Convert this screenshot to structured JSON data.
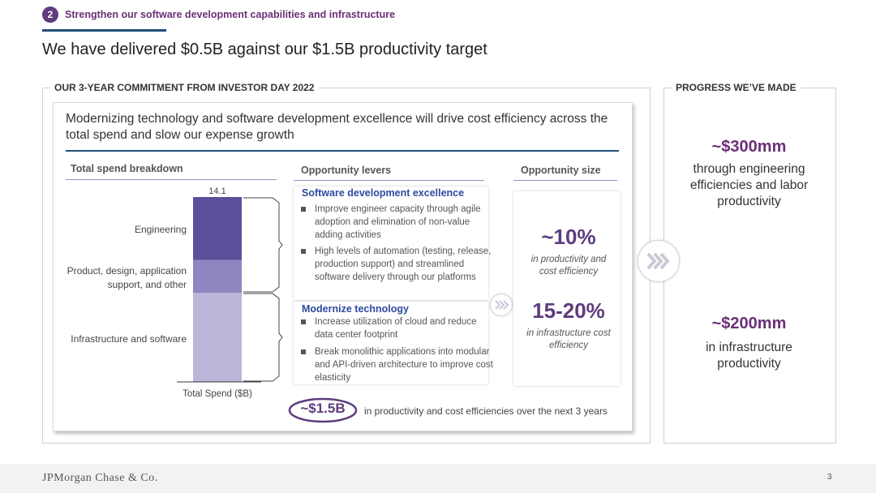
{
  "header": {
    "section_number": "2",
    "section_title": "Strengthen our software development capabilities and infrastructure",
    "headline": "We have delivered $0.5B against our $1.5B productivity target"
  },
  "left_panel": {
    "label": "OUR 3-YEAR COMMITMENT FROM INVESTOR DAY 2022",
    "card_title": "Modernizing technology and software development excellence will drive cost efficiency across the total spend and slow our expense growth",
    "col_breakdown": "Total spend breakdown",
    "col_levers": "Opportunity levers",
    "col_size": "Opportunity size",
    "levers": [
      {
        "title": "Software development excellence",
        "bullets": [
          "Improve engineer capacity through agile adoption and elimination of non-value adding activities",
          "High levels of automation (testing, release, production support) and streamlined software delivery through our platforms"
        ]
      },
      {
        "title": "Modernize technology",
        "bullets": [
          "Increase utilization of cloud and reduce data center footprint",
          "Break monolithic applications into modular and API-driven architecture to improve cost elasticity"
        ]
      }
    ],
    "sizes": [
      {
        "value": "~10%",
        "note": "in productivity and cost efficiency"
      },
      {
        "value": "15-20%",
        "note": "in infrastructure cost efficiency"
      }
    ],
    "commitment": {
      "value": "~$1.5B",
      "text": "in productivity and cost efficiencies over the next 3 years"
    }
  },
  "chart_data": {
    "type": "bar",
    "stacked": true,
    "categories": [
      "Total Spend ($B)"
    ],
    "xlabel": "Total Spend ($B)",
    "total": 14.1,
    "total_label": "14.1",
    "series": [
      {
        "name": "Infrastructure and software",
        "values": [
          6.8
        ],
        "color": "#b9b6d8"
      },
      {
        "name": "Product, design, application support, and other",
        "values": [
          2.5
        ],
        "color": "#8e86c0"
      },
      {
        "name": "Engineering",
        "values": [
          4.8
        ],
        "color": "#5a4f9a"
      }
    ],
    "brackets": [
      {
        "covers": [
          "Engineering",
          "Product, design, application support, and other"
        ],
        "lever": "Software development excellence"
      },
      {
        "covers": [
          "Infrastructure and software"
        ],
        "lever": "Modernize technology"
      }
    ]
  },
  "right_panel": {
    "label": "PROGRESS WE’VE MADE",
    "items": [
      {
        "value": "~$300mm",
        "text": "through engineering efficiencies and labor productivity"
      },
      {
        "value": "~$200mm",
        "text": "in infrastructure productivity"
      }
    ]
  },
  "footer": {
    "logo": "JPMorgan Chase & Co.",
    "page": "3"
  }
}
